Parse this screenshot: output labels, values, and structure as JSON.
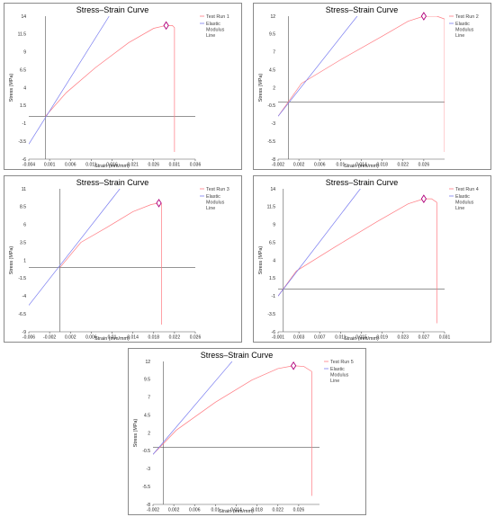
{
  "chart_data": [
    {
      "type": "line",
      "title": "Stress–Strain Curve",
      "xlabel": "Strain (mm/mm)",
      "ylabel": "Stress (MPa)",
      "xlim": [
        -0.004,
        0.036
      ],
      "ylim": [
        -6,
        14
      ],
      "xticks": [
        "-0.004",
        "0.001",
        "0.006",
        "0.011",
        "0.016",
        "0.021",
        "0.026",
        "0.031",
        "0.036"
      ],
      "yticks": [
        "14",
        "11.5",
        "9",
        "6.5",
        "4",
        "1.5",
        "-1",
        "-3.5",
        "-6"
      ],
      "legend": [
        "Test Run 1",
        "Elastic Modulus Line"
      ],
      "series": [
        {
          "name": "Test Run 1",
          "x": [
            0,
            0.005,
            0.012,
            0.02,
            0.026,
            0.029,
            0.0305,
            0.031,
            0.031
          ],
          "y": [
            0,
            3.3,
            6.8,
            10.3,
            12.3,
            12.7,
            12.7,
            12.4,
            -5.0
          ]
        },
        {
          "name": "Elastic Modulus Line",
          "x": [
            -0.004,
            0.0153
          ],
          "y": [
            -3.9,
            14
          ]
        }
      ],
      "peak": {
        "x": 0.029,
        "y": 12.7
      }
    },
    {
      "type": "line",
      "title": "Stress–Strain Curve",
      "xlabel": "Strain (mm/mm)",
      "ylabel": "Stress (MPa)",
      "xlim": [
        -0.002,
        0.03
      ],
      "ylim": [
        -8,
        12
      ],
      "xticks": [
        "-0.002",
        "0.002",
        "0.006",
        "0.01",
        "0.014",
        "0.018",
        "0.022",
        "0.026"
      ],
      "yticks": [
        "12",
        "9.5",
        "7",
        "4.5",
        "2",
        "-0.5",
        "-3",
        "-5.5",
        "-8"
      ],
      "legend": [
        "Test Run 2",
        "Elastic Modulus Line"
      ],
      "series": [
        {
          "name": "Test Run 2",
          "x": [
            -0.002,
            0.0025,
            0.01,
            0.018,
            0.023,
            0.026,
            0.0285,
            0.03,
            0.03
          ],
          "y": [
            -2.0,
            2.6,
            5.9,
            9.2,
            11.3,
            12.0,
            12.0,
            11.6,
            -7.0
          ]
        },
        {
          "name": "Elastic Modulus Line",
          "x": [
            -0.002,
            0.0132
          ],
          "y": [
            -2.0,
            12
          ]
        }
      ],
      "peak": {
        "x": 0.026,
        "y": 12.0
      }
    },
    {
      "type": "line",
      "title": "Stress–Strain Curve",
      "xlabel": "Strain (mm/mm)",
      "ylabel": "Stress (MPa)",
      "xlim": [
        -0.006,
        0.026
      ],
      "ylim": [
        -9,
        11
      ],
      "xticks": [
        "-0.006",
        "-0.002",
        "0.002",
        "0.006",
        "0.01",
        "0.014",
        "0.018",
        "0.022",
        "0.026"
      ],
      "yticks": [
        "11",
        "8.5",
        "6",
        "3.5",
        "1",
        "-1.5",
        "-4",
        "-6.5",
        "-9"
      ],
      "legend": [
        "Test Run 3",
        "Elastic Modulus Line"
      ],
      "series": [
        {
          "name": "Test Run 3",
          "x": [
            0,
            0.004,
            0.009,
            0.014,
            0.0175,
            0.019,
            0.0195,
            0.0195
          ],
          "y": [
            0,
            3.5,
            5.6,
            7.8,
            8.8,
            9.0,
            8.9,
            -8.0
          ]
        },
        {
          "name": "Elastic Modulus Line",
          "x": [
            -0.006,
            0.0115
          ],
          "y": [
            -5.3,
            11
          ]
        }
      ],
      "peak": {
        "x": 0.019,
        "y": 9.0
      }
    },
    {
      "type": "line",
      "title": "Stress–Strain Curve",
      "xlabel": "Strain (mm/mm)",
      "ylabel": "Stress (MPa)",
      "xlim": [
        -0.001,
        0.031
      ],
      "ylim": [
        -6,
        14
      ],
      "xticks": [
        "-0.001",
        "0.003",
        "0.007",
        "0.011",
        "0.015",
        "0.019",
        "0.023",
        "0.027",
        "0.031"
      ],
      "yticks": [
        "14",
        "11.5",
        "9",
        "6.5",
        "4",
        "1.5",
        "-1",
        "-3.5",
        "-6"
      ],
      "legend": [
        "Test Run 4",
        "Elastic Modulus Line"
      ],
      "series": [
        {
          "name": "Test Run 4",
          "x": [
            -0.001,
            0.0025,
            0.01,
            0.018,
            0.024,
            0.027,
            0.0285,
            0.0295,
            0.0295
          ],
          "y": [
            -1.0,
            2.5,
            5.9,
            9.4,
            11.9,
            12.6,
            12.6,
            12.1,
            -4.8
          ]
        },
        {
          "name": "Elastic Modulus Line",
          "x": [
            -0.001,
            0.0148
          ],
          "y": [
            -1.0,
            14
          ]
        }
      ],
      "peak": {
        "x": 0.027,
        "y": 12.6
      }
    },
    {
      "type": "line",
      "title": "Stress–Strain Curve",
      "xlabel": "Strain (mm/mm)",
      "ylabel": "Stress (MPa)",
      "xlim": [
        -0.002,
        0.03
      ],
      "ylim": [
        -8,
        12
      ],
      "xticks": [
        "-0.002",
        "0.002",
        "0.006",
        "0.01",
        "0.014",
        "0.018",
        "0.022",
        "0.026"
      ],
      "yticks": [
        "12",
        "9.5",
        "7",
        "4.5",
        "2",
        "-0.5",
        "-3",
        "-5.5",
        "-8"
      ],
      "legend": [
        "Test Run 5",
        "Elastic Modulus Line"
      ],
      "series": [
        {
          "name": "Test Run 5",
          "x": [
            -0.002,
            0.0025,
            0.01,
            0.017,
            0.022,
            0.025,
            0.027,
            0.0285,
            0.0285
          ],
          "y": [
            -1.0,
            2.4,
            6.3,
            9.4,
            11.0,
            11.4,
            11.3,
            10.6,
            -6.8
          ]
        },
        {
          "name": "Elastic Modulus Line",
          "x": [
            -0.002,
            0.0132
          ],
          "y": [
            -1.0,
            12
          ]
        }
      ],
      "peak": {
        "x": 0.025,
        "y": 11.4
      }
    }
  ],
  "colors": {
    "test_run": "#ff7b82",
    "elastic_line": "#7a7df0",
    "peak_marker": "#b0007a"
  }
}
